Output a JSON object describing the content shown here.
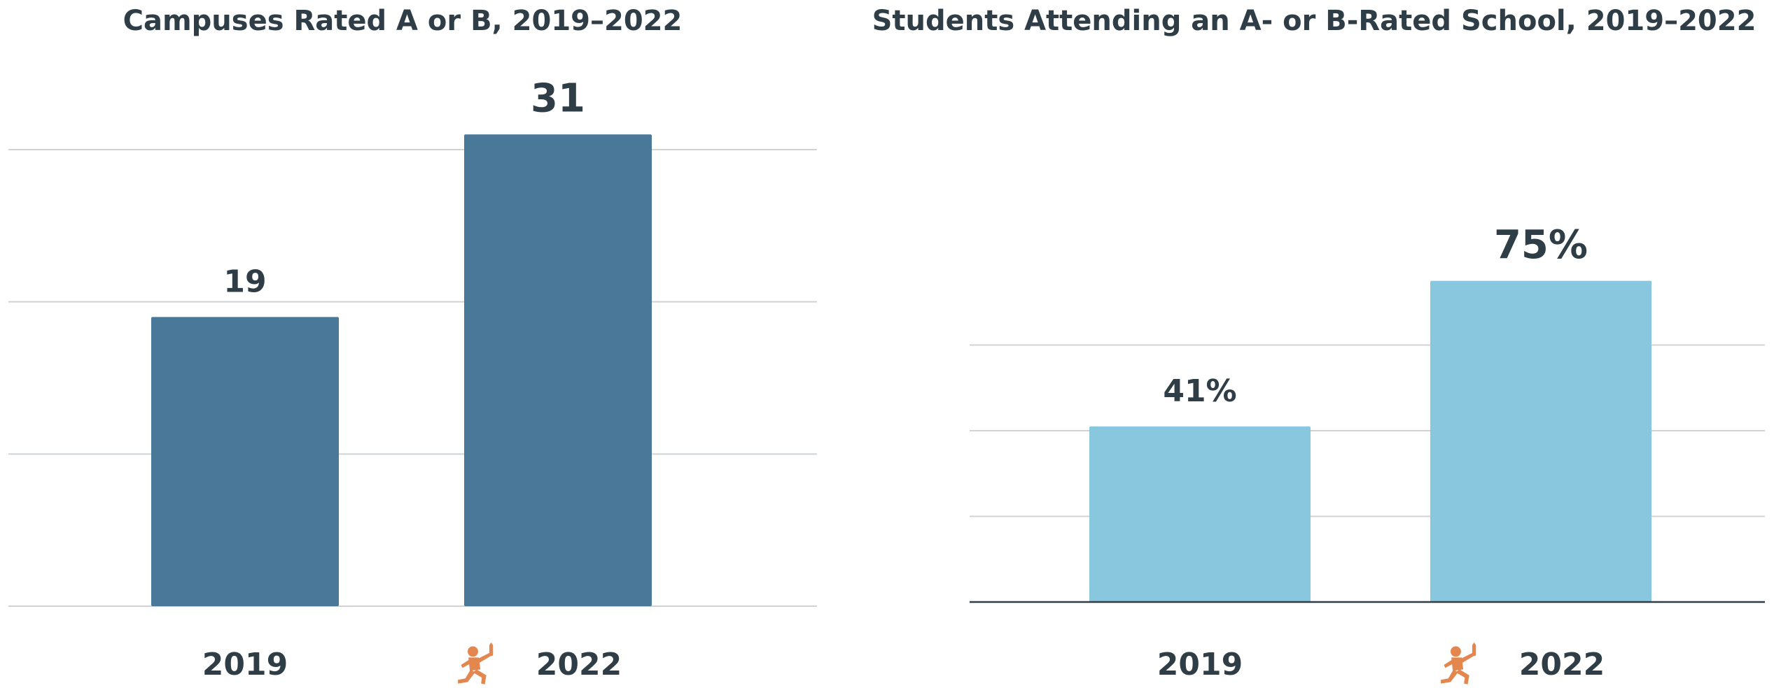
{
  "colors": {
    "text": "#2f3d47",
    "grid": "#cfd3d6",
    "axis": "#2f3d47",
    "icon": "#e3874f"
  },
  "chart_data": [
    {
      "type": "bar",
      "title": "Campuses Rated A or B, 2019–2022",
      "categories": [
        "2019",
        "2022"
      ],
      "values": [
        19,
        31
      ],
      "value_labels": [
        "19",
        "31"
      ],
      "ylim": [
        0,
        30
      ],
      "grid": true,
      "bar_color": "#4a7899",
      "icon_on_category": "2022",
      "icon": "runner-with-torch-icon"
    },
    {
      "type": "bar",
      "title": "Students Attending an A- or B-Rated School, 2019–2022",
      "categories": [
        "2019",
        "2022"
      ],
      "values": [
        41,
        75
      ],
      "value_labels": [
        "41%",
        "75%"
      ],
      "ylim": [
        0,
        80
      ],
      "grid": true,
      "bar_color": "#89c7df",
      "icon_on_category": "2022",
      "icon": "runner-with-torch-icon"
    }
  ]
}
